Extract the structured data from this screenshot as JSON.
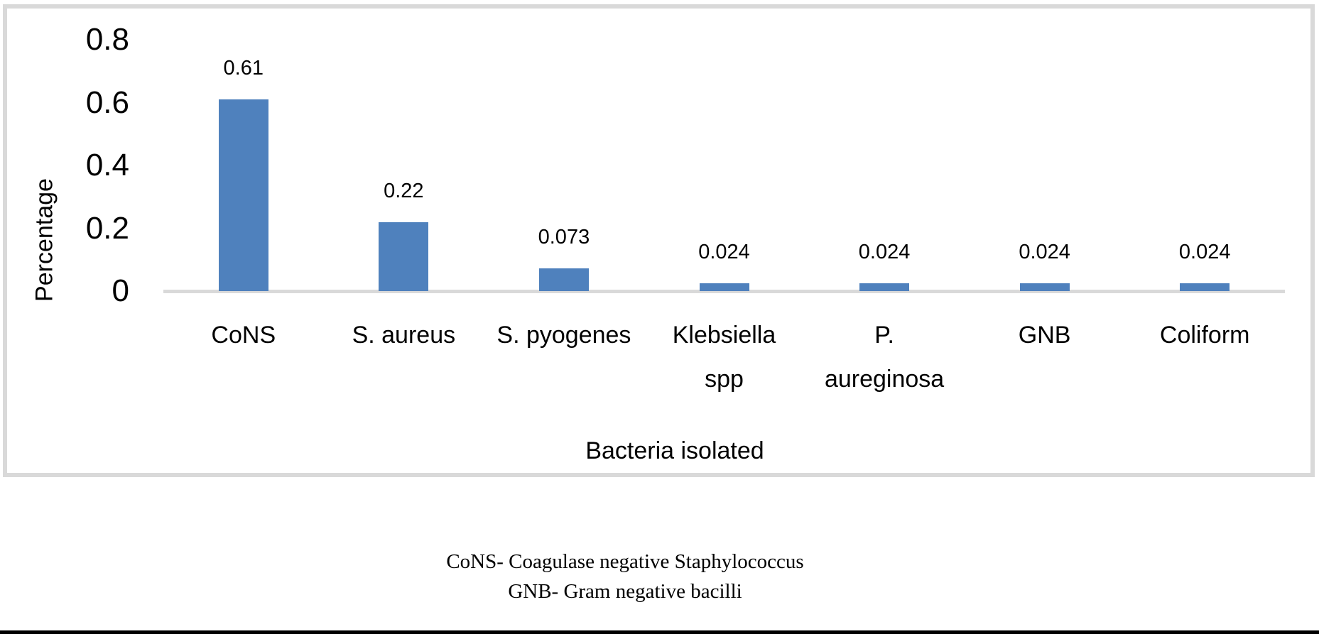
{
  "chart_data": {
    "type": "bar",
    "title": "",
    "categories": [
      "CoNS",
      "S. aureus",
      "S. pyogenes",
      "Klebsiella spp",
      "P. aureginosa",
      "GNB",
      "Coliform"
    ],
    "categories_display": [
      "CoNS",
      "S. aureus",
      "S. pyogenes",
      "Klebsiella\nspp",
      "P.\naureginosa",
      "GNB",
      "Coliform"
    ],
    "values": [
      0.61,
      0.22,
      0.073,
      0.024,
      0.024,
      0.024,
      0.024
    ],
    "value_labels": [
      "0.61",
      "0.22",
      "0.073",
      "0.024",
      "0.024",
      "0.024",
      "0.024"
    ],
    "xlabel": "Bacteria isolated",
    "ylabel": "Percentage",
    "ylim": [
      0,
      0.8
    ],
    "yticks": [
      0,
      0.2,
      0.4,
      0.6,
      0.8
    ],
    "ytick_labels": [
      "0",
      "0.2",
      "0.4",
      "0.6",
      "0.8"
    ],
    "bar_color": "#4F81BD",
    "axis_color": "#D9D9D9",
    "grid": false,
    "legend": null
  },
  "footnotes": {
    "line1": "CoNS- Coagulase negative Staphylococcus",
    "line2": "GNB- Gram negative bacilli"
  }
}
